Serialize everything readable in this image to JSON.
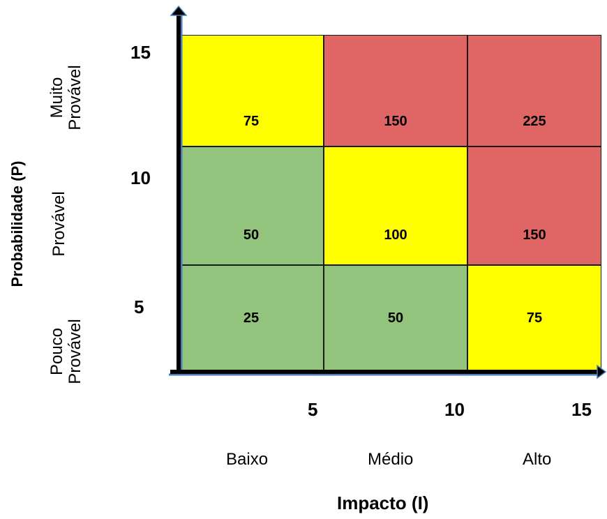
{
  "chart_data": {
    "type": "heatmap",
    "title": "",
    "xlabel": "Impacto (I)",
    "ylabel": "Probabilidade (P)",
    "x_ticks": [
      "5",
      "10",
      "15"
    ],
    "x_categories": [
      "Baixo",
      "Médio",
      "Alto"
    ],
    "y_ticks": [
      "15",
      "10",
      "5"
    ],
    "y_categories": [
      "Muito Provável",
      "Provável",
      "Pouco Provável"
    ],
    "y_categories_lines": [
      [
        "Muito",
        "Provável"
      ],
      [
        "Provável"
      ],
      [
        "Pouco",
        "Provável"
      ]
    ],
    "cells": [
      {
        "row": "Muito Provável",
        "col": "Baixo",
        "value": "75",
        "color": "#ffff00"
      },
      {
        "row": "Muito Provável",
        "col": "Médio",
        "value": "150",
        "color": "#e06666"
      },
      {
        "row": "Muito Provável",
        "col": "Alto",
        "value": "225",
        "color": "#e06666"
      },
      {
        "row": "Provável",
        "col": "Baixo",
        "value": "50",
        "color": "#93c47d"
      },
      {
        "row": "Provável",
        "col": "Médio",
        "value": "100",
        "color": "#ffff00"
      },
      {
        "row": "Provável",
        "col": "Alto",
        "value": "150",
        "color": "#e06666"
      },
      {
        "row": "Pouco Provável",
        "col": "Baixo",
        "value": "25",
        "color": "#93c47d"
      },
      {
        "row": "Pouco Provável",
        "col": "Médio",
        "value": "50",
        "color": "#93c47d"
      },
      {
        "row": "Pouco Provável",
        "col": "Alto",
        "value": "75",
        "color": "#ffff00"
      }
    ],
    "axis_color": "#000000",
    "axis_shadow_color": "#4a7ebb"
  }
}
